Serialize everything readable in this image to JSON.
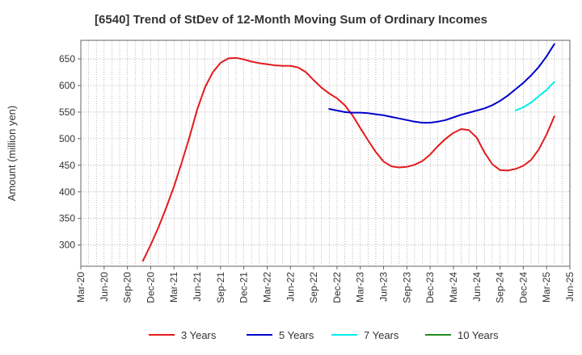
{
  "chart_data": {
    "type": "line",
    "title": "[6540]  Trend of StDev of 12-Month Moving Sum of Ordinary Incomes",
    "ylabel": "Amount (million yen)",
    "xlabel": "",
    "x_ticks": [
      "Mar-20",
      "Jun-20",
      "Sep-20",
      "Dec-20",
      "Mar-21",
      "Jun-21",
      "Sep-21",
      "Dec-21",
      "Mar-22",
      "Jun-22",
      "Sep-22",
      "Dec-22",
      "Mar-23",
      "Jun-23",
      "Sep-23",
      "Dec-23",
      "Mar-24",
      "Jun-24",
      "Sep-24",
      "Dec-24",
      "Mar-25",
      "Jun-25"
    ],
    "y_ticks": [
      300,
      350,
      400,
      450,
      500,
      550,
      600,
      650
    ],
    "ylim": [
      260,
      685
    ],
    "xlim": [
      "2020-03",
      "2025-06"
    ],
    "grid": true,
    "legend_position": "bottom",
    "series": [
      {
        "name": "3 Years",
        "color": "#e41a1c",
        "points": [
          [
            "2020-11",
            270
          ],
          [
            "2020-12",
            300
          ],
          [
            "2021-01",
            333
          ],
          [
            "2021-02",
            370
          ],
          [
            "2021-03",
            410
          ],
          [
            "2021-04",
            455
          ],
          [
            "2021-05",
            503
          ],
          [
            "2021-06",
            555
          ],
          [
            "2021-07",
            597
          ],
          [
            "2021-08",
            625
          ],
          [
            "2021-09",
            643
          ],
          [
            "2021-10",
            651
          ],
          [
            "2021-11",
            652
          ],
          [
            "2021-12",
            649
          ],
          [
            "2022-01",
            645
          ],
          [
            "2022-02",
            642
          ],
          [
            "2022-03",
            640
          ],
          [
            "2022-04",
            638
          ],
          [
            "2022-05",
            637
          ],
          [
            "2022-06",
            637
          ],
          [
            "2022-07",
            634
          ],
          [
            "2022-08",
            625
          ],
          [
            "2022-09",
            610
          ],
          [
            "2022-10",
            596
          ],
          [
            "2022-11",
            585
          ],
          [
            "2022-12",
            576
          ],
          [
            "2023-01",
            563
          ],
          [
            "2023-02",
            544
          ],
          [
            "2023-03",
            520
          ],
          [
            "2023-04",
            497
          ],
          [
            "2023-05",
            475
          ],
          [
            "2023-06",
            457
          ],
          [
            "2023-07",
            448
          ],
          [
            "2023-08",
            446
          ],
          [
            "2023-09",
            447
          ],
          [
            "2023-10",
            451
          ],
          [
            "2023-11",
            458
          ],
          [
            "2023-12",
            470
          ],
          [
            "2024-01",
            486
          ],
          [
            "2024-02",
            500
          ],
          [
            "2024-03",
            511
          ],
          [
            "2024-04",
            518
          ],
          [
            "2024-05",
            516
          ],
          [
            "2024-06",
            502
          ],
          [
            "2024-07",
            474
          ],
          [
            "2024-08",
            452
          ],
          [
            "2024-09",
            441
          ],
          [
            "2024-10",
            440
          ],
          [
            "2024-11",
            443
          ],
          [
            "2024-12",
            449
          ],
          [
            "2025-01",
            460
          ],
          [
            "2025-02",
            480
          ],
          [
            "2025-03",
            508
          ],
          [
            "2025-04",
            542
          ]
        ]
      },
      {
        "name": "5 Years",
        "color": "#0000cc",
        "points": [
          [
            "2022-11",
            556
          ],
          [
            "2022-12",
            553
          ],
          [
            "2023-01",
            550
          ],
          [
            "2023-02",
            549
          ],
          [
            "2023-03",
            549
          ],
          [
            "2023-04",
            548
          ],
          [
            "2023-05",
            546
          ],
          [
            "2023-06",
            544
          ],
          [
            "2023-07",
            541
          ],
          [
            "2023-08",
            538
          ],
          [
            "2023-09",
            535
          ],
          [
            "2023-10",
            532
          ],
          [
            "2023-11",
            530
          ],
          [
            "2023-12",
            530
          ],
          [
            "2024-01",
            532
          ],
          [
            "2024-02",
            535
          ],
          [
            "2024-03",
            540
          ],
          [
            "2024-04",
            545
          ],
          [
            "2024-05",
            549
          ],
          [
            "2024-06",
            553
          ],
          [
            "2024-07",
            557
          ],
          [
            "2024-08",
            563
          ],
          [
            "2024-09",
            571
          ],
          [
            "2024-10",
            581
          ],
          [
            "2024-11",
            593
          ],
          [
            "2024-12",
            605
          ],
          [
            "2025-01",
            619
          ],
          [
            "2025-02",
            635
          ],
          [
            "2025-03",
            655
          ],
          [
            "2025-04",
            678
          ]
        ]
      },
      {
        "name": "7 Years",
        "color": "#00eeee",
        "points": [
          [
            "2024-11",
            553
          ],
          [
            "2024-12",
            559
          ],
          [
            "2025-01",
            568
          ],
          [
            "2025-02",
            580
          ],
          [
            "2025-03",
            592
          ],
          [
            "2025-04",
            607
          ]
        ]
      },
      {
        "name": "10 Years",
        "color": "#228b22",
        "points": []
      }
    ]
  }
}
